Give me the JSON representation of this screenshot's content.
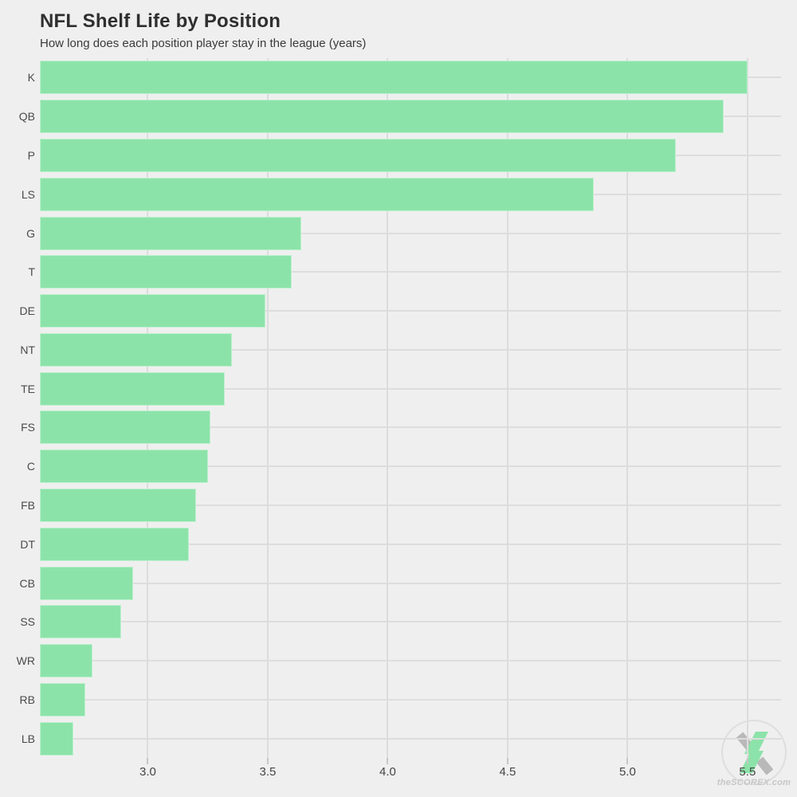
{
  "header": {
    "title": "NFL Shelf Life by Position",
    "subtitle": "How long does each position player stay in the league (years)"
  },
  "watermark": {
    "text": "theSCOREX.com"
  },
  "colors": {
    "background": "#efefef",
    "bar": "#8ce3a9",
    "grid": "#dcdcdc",
    "title_text": "#2f2f2f",
    "axis_text": "#454545",
    "watermark_gray": "#b9b9b9",
    "watermark_green": "#8ce3a9",
    "watermark_text": "#c6c6c6"
  },
  "chart_data": {
    "type": "bar",
    "orientation": "horizontal",
    "title": "NFL Shelf Life by Position",
    "subtitle": "How long does each position player stay in the league (years)",
    "unit": "years",
    "categories": [
      "K",
      "QB",
      "P",
      "LS",
      "G",
      "T",
      "DE",
      "NT",
      "TE",
      "FS",
      "C",
      "FB",
      "DT",
      "CB",
      "SS",
      "WR",
      "RB",
      "LB"
    ],
    "values": [
      5.5,
      5.4,
      5.2,
      4.86,
      3.64,
      3.6,
      3.49,
      3.35,
      3.32,
      3.26,
      3.25,
      3.2,
      3.17,
      2.94,
      2.89,
      2.77,
      2.74,
      2.69
    ],
    "xlabel": "",
    "ylabel": "",
    "xlim": [
      2.55,
      5.64
    ],
    "xticks": [
      3.0,
      3.5,
      4.0,
      4.5,
      5.0,
      5.5
    ],
    "grid": true,
    "legend": false
  }
}
